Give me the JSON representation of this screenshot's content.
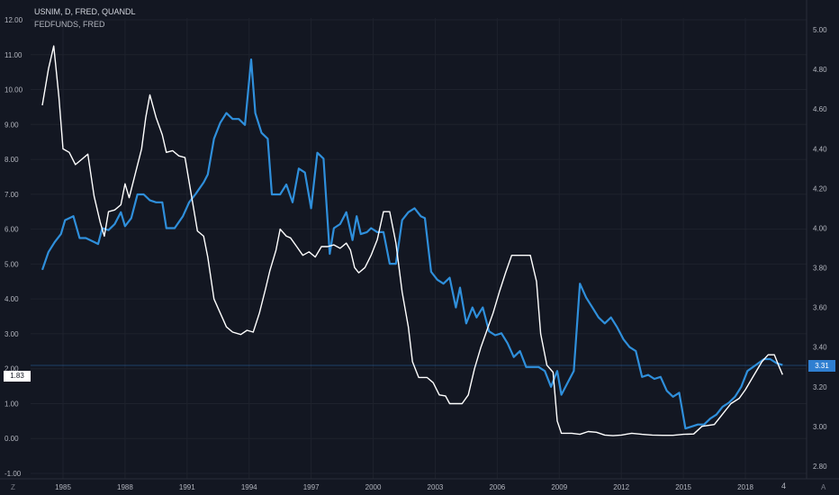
{
  "legend": {
    "line1": "USNIM, D, FRED, QUANDL",
    "line2": "FEDFUNDS, FRED"
  },
  "corner": {
    "left": "Z",
    "right": "A",
    "scale_icon": "4"
  },
  "colors": {
    "background": "#131722",
    "usnim": "#2f8fdb",
    "fedfunds": "#ffffff",
    "grid": "#1e222d",
    "axis_text": "#b2b5be",
    "hline": "#2f7fd1"
  },
  "chart_data": {
    "type": "line",
    "x_ticks": [
      "1985",
      "1988",
      "1991",
      "1994",
      "1997",
      "2000",
      "2003",
      "2006",
      "2009",
      "2012",
      "2015",
      "2018"
    ],
    "left_axis": {
      "ticks": [
        "12.00",
        "11.00",
        "10.00",
        "9.00",
        "8.00",
        "7.00",
        "6.00",
        "5.00",
        "4.00",
        "3.00",
        "2.00",
        "1.00",
        "0.00",
        "-1.00"
      ],
      "ylim": [
        -1,
        12
      ]
    },
    "right_axis": {
      "ticks": [
        "5.00",
        "4.80",
        "4.60",
        "4.40",
        "4.20",
        "4.00",
        "3.80",
        "3.60",
        "3.40",
        "3.20",
        "3.00",
        "2.80"
      ],
      "ylim": [
        2.79,
        5.12
      ]
    },
    "last_value_tags": {
      "fedfunds": "1.83",
      "usnim": "3.31"
    },
    "series": [
      {
        "axis": "left",
        "color": "#ffffff",
        "points": [
          [
            1984.0,
            9.55
          ],
          [
            1984.3,
            10.6
          ],
          [
            1984.55,
            11.25
          ],
          [
            1984.8,
            9.8
          ],
          [
            1985.0,
            8.3
          ],
          [
            1985.3,
            8.2
          ],
          [
            1985.6,
            7.85
          ],
          [
            1985.9,
            8.0
          ],
          [
            1986.2,
            8.15
          ],
          [
            1986.5,
            6.95
          ],
          [
            1986.8,
            6.2
          ],
          [
            1987.0,
            5.8
          ],
          [
            1987.2,
            6.5
          ],
          [
            1987.5,
            6.55
          ],
          [
            1987.8,
            6.7
          ],
          [
            1988.0,
            7.3
          ],
          [
            1988.2,
            6.9
          ],
          [
            1988.5,
            7.6
          ],
          [
            1988.8,
            8.3
          ],
          [
            1989.0,
            9.2
          ],
          [
            1989.2,
            9.85
          ],
          [
            1989.5,
            9.2
          ],
          [
            1989.8,
            8.7
          ],
          [
            1990.0,
            8.2
          ],
          [
            1990.3,
            8.25
          ],
          [
            1990.6,
            8.1
          ],
          [
            1990.9,
            8.05
          ],
          [
            1991.2,
            7.0
          ],
          [
            1991.5,
            5.95
          ],
          [
            1991.8,
            5.8
          ],
          [
            1992.0,
            5.2
          ],
          [
            1992.3,
            4.0
          ],
          [
            1992.6,
            3.6
          ],
          [
            1992.9,
            3.2
          ],
          [
            1993.2,
            3.05
          ],
          [
            1993.6,
            2.98
          ],
          [
            1993.9,
            3.1
          ],
          [
            1994.2,
            3.05
          ],
          [
            1994.5,
            3.6
          ],
          [
            1994.8,
            4.3
          ],
          [
            1995.0,
            4.8
          ],
          [
            1995.3,
            5.4
          ],
          [
            1995.5,
            6.0
          ],
          [
            1995.8,
            5.8
          ],
          [
            1996.0,
            5.75
          ],
          [
            1996.3,
            5.5
          ],
          [
            1996.6,
            5.25
          ],
          [
            1996.9,
            5.35
          ],
          [
            1997.2,
            5.2
          ],
          [
            1997.5,
            5.5
          ],
          [
            1997.8,
            5.5
          ],
          [
            1998.1,
            5.55
          ],
          [
            1998.4,
            5.45
          ],
          [
            1998.7,
            5.6
          ],
          [
            1998.9,
            5.4
          ],
          [
            1999.1,
            4.9
          ],
          [
            1999.3,
            4.75
          ],
          [
            1999.6,
            4.9
          ],
          [
            1999.9,
            5.25
          ],
          [
            2000.2,
            5.7
          ],
          [
            2000.5,
            6.5
          ],
          [
            2000.8,
            6.5
          ],
          [
            2001.1,
            5.6
          ],
          [
            2001.4,
            4.2
          ],
          [
            2001.7,
            3.2
          ],
          [
            2001.9,
            2.2
          ],
          [
            2002.2,
            1.75
          ],
          [
            2002.6,
            1.75
          ],
          [
            2002.9,
            1.6
          ],
          [
            2003.2,
            1.25
          ],
          [
            2003.5,
            1.22
          ],
          [
            2003.7,
            1.0
          ],
          [
            2004.0,
            1.0
          ],
          [
            2004.3,
            1.0
          ],
          [
            2004.6,
            1.25
          ],
          [
            2004.9,
            2.0
          ],
          [
            2005.2,
            2.6
          ],
          [
            2005.5,
            3.1
          ],
          [
            2005.8,
            3.6
          ],
          [
            2006.1,
            4.2
          ],
          [
            2006.4,
            4.75
          ],
          [
            2006.7,
            5.25
          ],
          [
            2007.0,
            5.25
          ],
          [
            2007.3,
            5.25
          ],
          [
            2007.6,
            5.25
          ],
          [
            2007.9,
            4.5
          ],
          [
            2008.1,
            3.0
          ],
          [
            2008.4,
            2.1
          ],
          [
            2008.7,
            1.9
          ],
          [
            2008.9,
            0.5
          ],
          [
            2009.1,
            0.15
          ],
          [
            2009.6,
            0.15
          ],
          [
            2010.0,
            0.12
          ],
          [
            2010.4,
            0.2
          ],
          [
            2010.8,
            0.18
          ],
          [
            2011.2,
            0.1
          ],
          [
            2011.6,
            0.08
          ],
          [
            2012.0,
            0.1
          ],
          [
            2012.5,
            0.15
          ],
          [
            2013.0,
            0.12
          ],
          [
            2013.5,
            0.1
          ],
          [
            2014.0,
            0.09
          ],
          [
            2014.5,
            0.09
          ],
          [
            2015.0,
            0.12
          ],
          [
            2015.5,
            0.13
          ],
          [
            2015.9,
            0.35
          ],
          [
            2016.5,
            0.4
          ],
          [
            2016.9,
            0.7
          ],
          [
            2017.3,
            1.0
          ],
          [
            2017.7,
            1.15
          ],
          [
            2018.0,
            1.4
          ],
          [
            2018.4,
            1.8
          ],
          [
            2018.8,
            2.2
          ],
          [
            2019.1,
            2.4
          ],
          [
            2019.4,
            2.4
          ],
          [
            2019.6,
            2.1
          ],
          [
            2019.8,
            1.83
          ]
        ]
      },
      {
        "axis": "right",
        "color": "#2f8fdb",
        "points": [
          [
            1984.0,
            3.79
          ],
          [
            1984.3,
            3.88
          ],
          [
            1984.6,
            3.93
          ],
          [
            1984.9,
            3.97
          ],
          [
            1985.1,
            4.04
          ],
          [
            1985.5,
            4.06
          ],
          [
            1985.8,
            3.95
          ],
          [
            1986.1,
            3.95
          ],
          [
            1986.5,
            3.93
          ],
          [
            1986.7,
            3.92
          ],
          [
            1986.9,
            4.0
          ],
          [
            1987.2,
            3.99
          ],
          [
            1987.5,
            4.02
          ],
          [
            1987.8,
            4.08
          ],
          [
            1988.0,
            4.01
          ],
          [
            1988.3,
            4.05
          ],
          [
            1988.6,
            4.17
          ],
          [
            1988.9,
            4.17
          ],
          [
            1989.2,
            4.14
          ],
          [
            1989.5,
            4.13
          ],
          [
            1989.8,
            4.13
          ],
          [
            1990.0,
            4.0
          ],
          [
            1990.4,
            4.0
          ],
          [
            1990.8,
            4.06
          ],
          [
            1991.1,
            4.13
          ],
          [
            1991.4,
            4.17
          ],
          [
            1991.8,
            4.23
          ],
          [
            1992.0,
            4.27
          ],
          [
            1992.3,
            4.45
          ],
          [
            1992.6,
            4.53
          ],
          [
            1992.9,
            4.58
          ],
          [
            1993.2,
            4.55
          ],
          [
            1993.5,
            4.55
          ],
          [
            1993.8,
            4.52
          ],
          [
            1994.1,
            4.85
          ],
          [
            1994.3,
            4.58
          ],
          [
            1994.6,
            4.48
          ],
          [
            1994.9,
            4.45
          ],
          [
            1995.1,
            4.17
          ],
          [
            1995.5,
            4.17
          ],
          [
            1995.8,
            4.22
          ],
          [
            1996.1,
            4.13
          ],
          [
            1996.4,
            4.3
          ],
          [
            1996.7,
            4.28
          ],
          [
            1997.0,
            4.1
          ],
          [
            1997.3,
            4.38
          ],
          [
            1997.6,
            4.35
          ],
          [
            1997.9,
            3.87
          ],
          [
            1998.1,
            4.0
          ],
          [
            1998.4,
            4.02
          ],
          [
            1998.7,
            4.08
          ],
          [
            1999.0,
            3.94
          ],
          [
            1999.2,
            4.06
          ],
          [
            1999.4,
            3.97
          ],
          [
            1999.7,
            3.98
          ],
          [
            1999.9,
            4.0
          ],
          [
            2000.2,
            3.98
          ],
          [
            2000.5,
            3.98
          ],
          [
            2000.8,
            3.82
          ],
          [
            2001.1,
            3.82
          ],
          [
            2001.4,
            4.04
          ],
          [
            2001.7,
            4.08
          ],
          [
            2002.0,
            4.1
          ],
          [
            2002.3,
            4.06
          ],
          [
            2002.5,
            4.05
          ],
          [
            2002.8,
            3.78
          ],
          [
            2003.1,
            3.74
          ],
          [
            2003.4,
            3.72
          ],
          [
            2003.7,
            3.75
          ],
          [
            2004.0,
            3.6
          ],
          [
            2004.2,
            3.7
          ],
          [
            2004.5,
            3.52
          ],
          [
            2004.8,
            3.6
          ],
          [
            2005.0,
            3.55
          ],
          [
            2005.3,
            3.6
          ],
          [
            2005.6,
            3.48
          ],
          [
            2005.9,
            3.46
          ],
          [
            2006.2,
            3.47
          ],
          [
            2006.5,
            3.42
          ],
          [
            2006.8,
            3.35
          ],
          [
            2007.1,
            3.38
          ],
          [
            2007.4,
            3.3
          ],
          [
            2007.7,
            3.3
          ],
          [
            2008.0,
            3.3
          ],
          [
            2008.3,
            3.28
          ],
          [
            2008.6,
            3.2
          ],
          [
            2008.9,
            3.28
          ],
          [
            2009.1,
            3.16
          ],
          [
            2009.4,
            3.22
          ],
          [
            2009.7,
            3.28
          ],
          [
            2010.0,
            3.72
          ],
          [
            2010.3,
            3.65
          ],
          [
            2010.6,
            3.6
          ],
          [
            2010.9,
            3.55
          ],
          [
            2011.2,
            3.52
          ],
          [
            2011.5,
            3.55
          ],
          [
            2011.8,
            3.5
          ],
          [
            2012.1,
            3.44
          ],
          [
            2012.4,
            3.4
          ],
          [
            2012.7,
            3.38
          ],
          [
            2013.0,
            3.25
          ],
          [
            2013.3,
            3.26
          ],
          [
            2013.6,
            3.24
          ],
          [
            2013.9,
            3.25
          ],
          [
            2014.2,
            3.18
          ],
          [
            2014.5,
            3.15
          ],
          [
            2014.8,
            3.17
          ],
          [
            2015.1,
            2.99
          ],
          [
            2015.4,
            3.0
          ],
          [
            2015.7,
            3.01
          ],
          [
            2016.0,
            3.01
          ],
          [
            2016.3,
            3.04
          ],
          [
            2016.6,
            3.06
          ],
          [
            2016.9,
            3.1
          ],
          [
            2017.2,
            3.12
          ],
          [
            2017.5,
            3.15
          ],
          [
            2017.8,
            3.2
          ],
          [
            2018.1,
            3.28
          ],
          [
            2018.5,
            3.31
          ],
          [
            2018.9,
            3.34
          ],
          [
            2019.2,
            3.34
          ],
          [
            2019.5,
            3.32
          ],
          [
            2019.8,
            3.31
          ]
        ]
      }
    ]
  }
}
